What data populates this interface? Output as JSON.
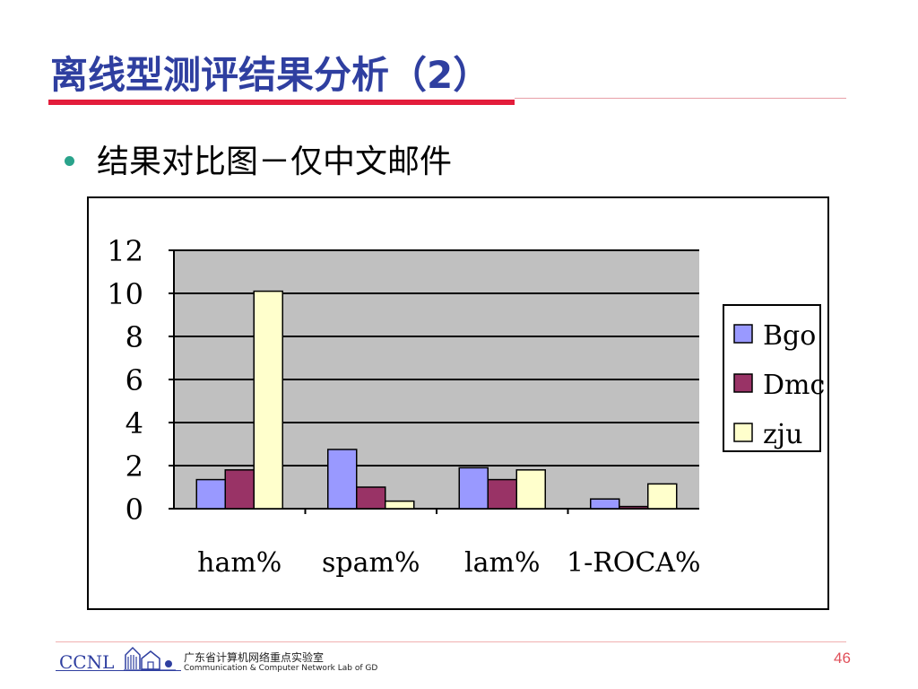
{
  "slide": {
    "title": "离线型测评结果分析（2）",
    "bullet": "结果对比图－仅中文邮件",
    "page_number": "46"
  },
  "footer": {
    "logo_text": "CCNL",
    "org_cn": "广东省计算机网络重点实验室",
    "org_en": "Communication & Computer Network Lab of GD"
  },
  "colors": {
    "title": "#2f3fa0",
    "accent_red": "#e31d3b",
    "plot_bg": "#c0c0c0",
    "bgo": "#9999ff",
    "dmc": "#993366",
    "zju": "#ffffcc"
  },
  "chart_data": {
    "type": "bar",
    "categories": [
      "ham%",
      "spam%",
      "lam%",
      "1-ROCA%"
    ],
    "series": [
      {
        "name": "Bgo",
        "values": [
          1.35,
          2.75,
          1.9,
          0.45
        ]
      },
      {
        "name": "Dmc",
        "values": [
          1.8,
          1.0,
          1.35,
          0.1
        ]
      },
      {
        "name": "zju",
        "values": [
          10.1,
          0.35,
          1.8,
          1.15
        ]
      }
    ],
    "ylim": [
      0,
      12
    ],
    "yticks": [
      "0",
      "2",
      "4",
      "6",
      "8",
      "10",
      "12"
    ],
    "grid": true,
    "legend": "right"
  }
}
